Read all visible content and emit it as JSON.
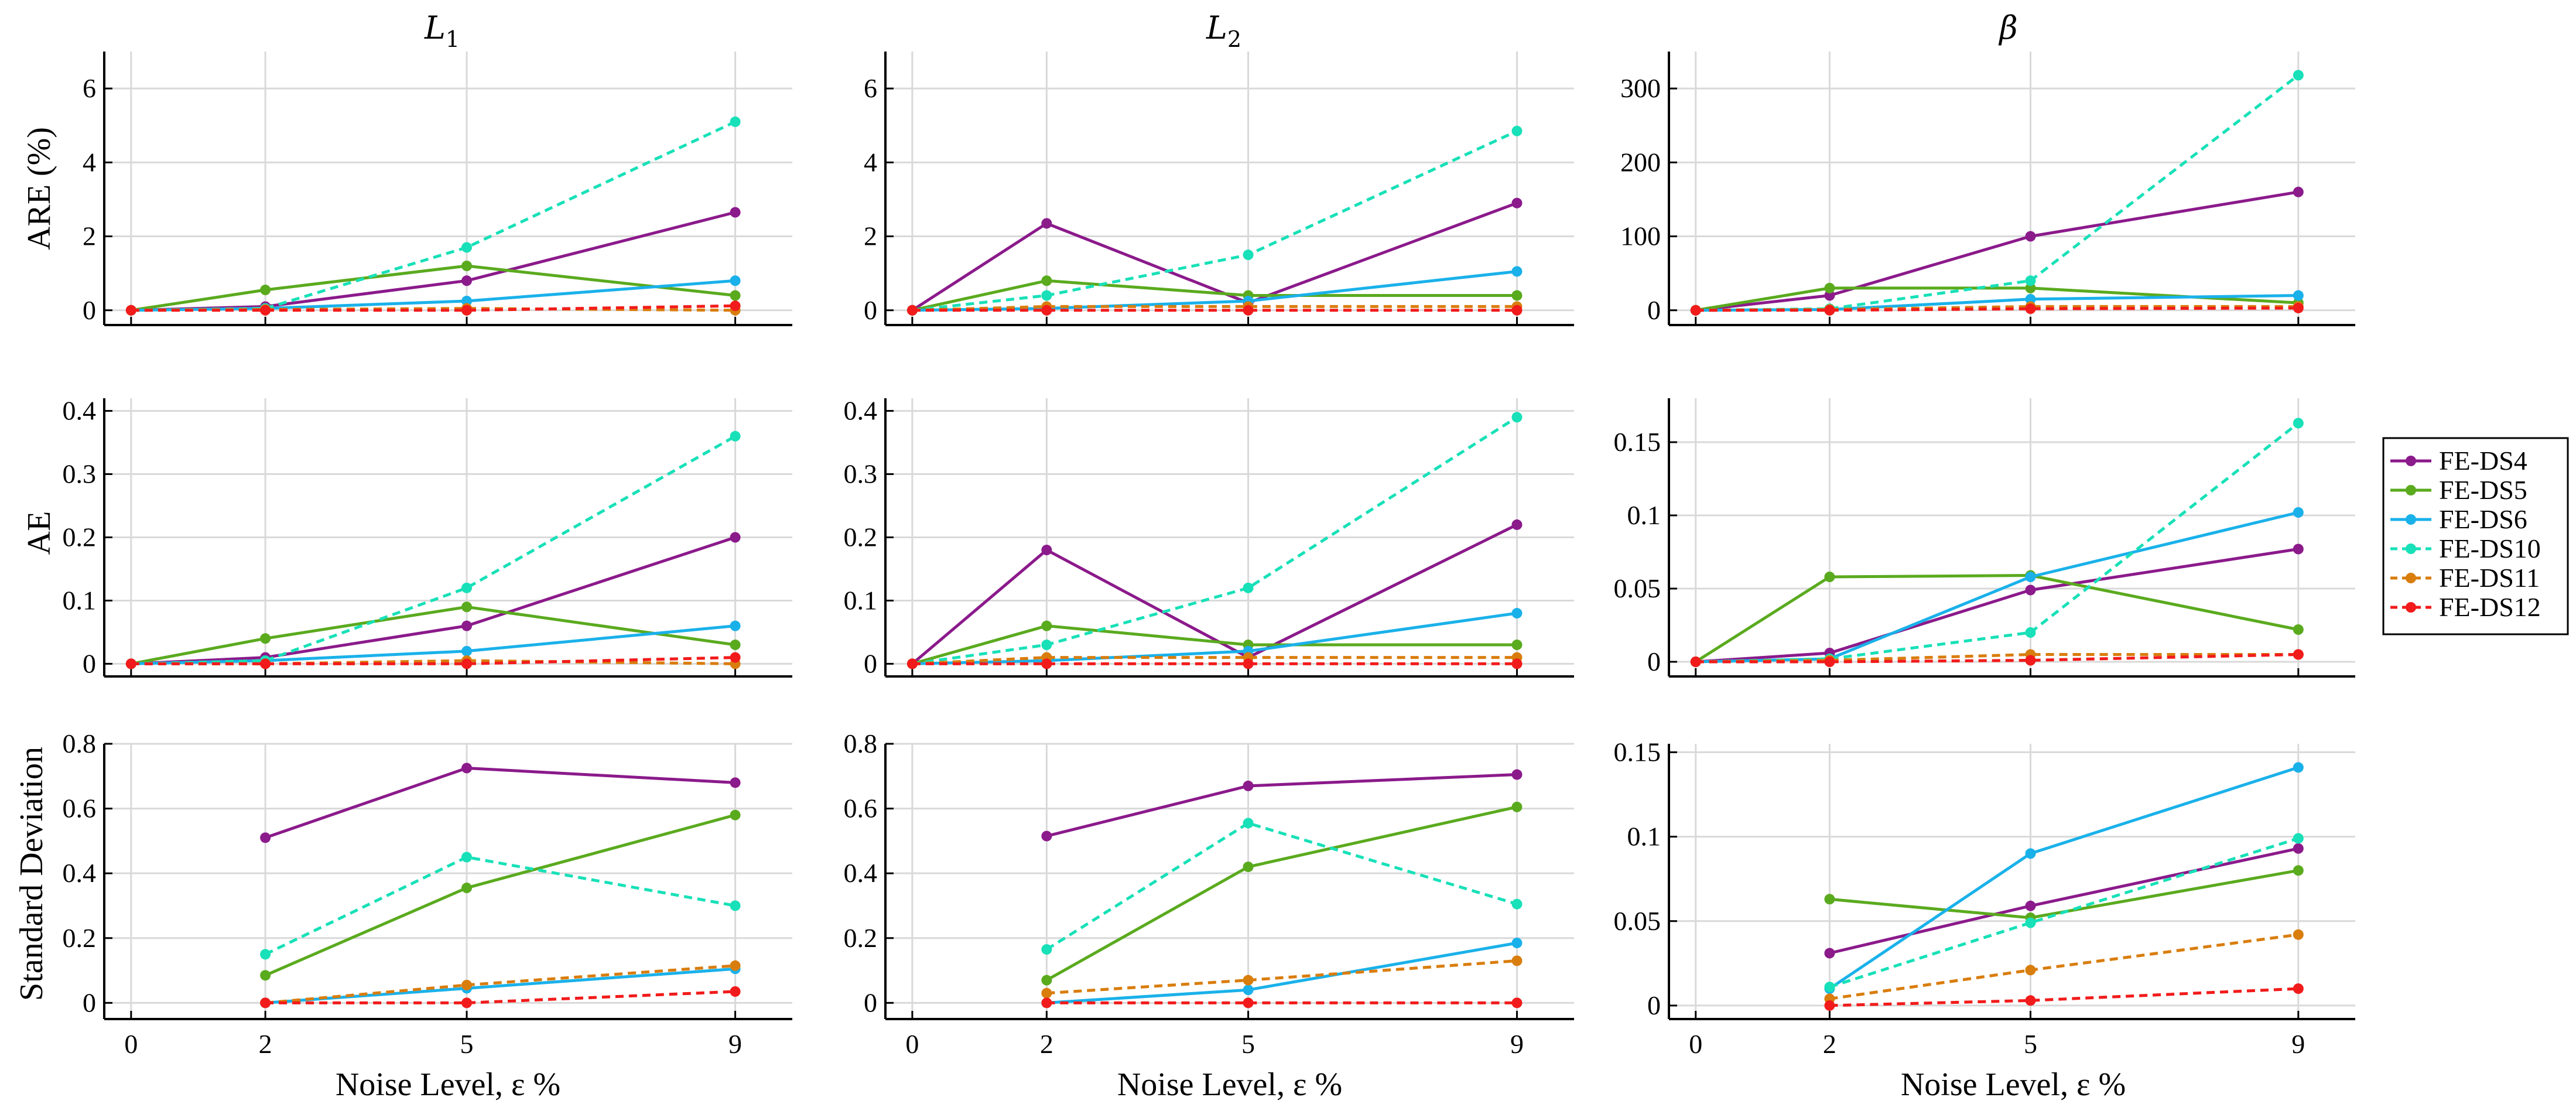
{
  "chart_data": {
    "type": "line",
    "xlabel": "Noise Level, ε %",
    "x_ticks": [
      0,
      2,
      5,
      9
    ],
    "series_styles": [
      {
        "name": "FE-DS4",
        "color": "#8b1a8b",
        "dash": "solid"
      },
      {
        "name": "FE-DS5",
        "color": "#5aaa1e",
        "dash": "solid"
      },
      {
        "name": "FE-DS6",
        "color": "#1ab1ea",
        "dash": "solid"
      },
      {
        "name": "FE-DS10",
        "color": "#18e0b8",
        "dash": "dashed"
      },
      {
        "name": "FE-DS11",
        "color": "#d97d0d",
        "dash": "dashed"
      },
      {
        "name": "FE-DS12",
        "color": "#f21b1b",
        "dash": "dashed"
      }
    ],
    "columns": [
      "L1",
      "L2",
      "β"
    ],
    "row_ylabels": [
      "ARE (%)",
      "AE",
      "Standard Deviation"
    ],
    "panels": [
      {
        "row": 0,
        "col": 0,
        "ylim": [
          -0.4,
          7
        ],
        "yticks": [
          0,
          2,
          4,
          6
        ],
        "ytick_labels": [
          "0",
          "2",
          "4",
          "6"
        ],
        "series": [
          {
            "x": [
              0,
              2,
              5,
              9
            ],
            "y": [
              0,
              0.1,
              0.8,
              2.65
            ]
          },
          {
            "x": [
              0,
              2,
              5,
              9
            ],
            "y": [
              0,
              0.55,
              1.2,
              0.4
            ]
          },
          {
            "x": [
              0,
              2,
              5,
              9
            ],
            "y": [
              0,
              0.05,
              0.25,
              0.8
            ]
          },
          {
            "x": [
              0,
              2,
              5,
              9
            ],
            "y": [
              0,
              0.05,
              1.7,
              5.1
            ]
          },
          {
            "x": [
              0,
              2,
              5,
              9
            ],
            "y": [
              0,
              0.02,
              0.05,
              0.0
            ]
          },
          {
            "x": [
              0,
              2,
              5,
              9
            ],
            "y": [
              0,
              0.0,
              0.0,
              0.12
            ]
          }
        ]
      },
      {
        "row": 0,
        "col": 1,
        "ylim": [
          -0.4,
          7
        ],
        "yticks": [
          0,
          2,
          4,
          6
        ],
        "ytick_labels": [
          "0",
          "2",
          "4",
          "6"
        ],
        "series": [
          {
            "x": [
              0,
              2,
              5,
              9
            ],
            "y": [
              0,
              2.35,
              0.2,
              2.9
            ]
          },
          {
            "x": [
              0,
              2,
              5,
              9
            ],
            "y": [
              0,
              0.8,
              0.4,
              0.4
            ]
          },
          {
            "x": [
              0,
              2,
              5,
              9
            ],
            "y": [
              0,
              0.05,
              0.25,
              1.05
            ]
          },
          {
            "x": [
              0,
              2,
              5,
              9
            ],
            "y": [
              0,
              0.4,
              1.5,
              4.85
            ]
          },
          {
            "x": [
              0,
              2,
              5,
              9
            ],
            "y": [
              0,
              0.1,
              0.1,
              0.1
            ]
          },
          {
            "x": [
              0,
              2,
              5,
              9
            ],
            "y": [
              0,
              0.0,
              0.0,
              0.0
            ]
          }
        ]
      },
      {
        "row": 0,
        "col": 2,
        "ylim": [
          -20,
          350
        ],
        "yticks": [
          0,
          100,
          200,
          300
        ],
        "ytick_labels": [
          "0",
          "100",
          "200",
          "300"
        ],
        "series": [
          {
            "x": [
              0,
              2,
              5,
              9
            ],
            "y": [
              0,
              20,
              100,
              160
            ]
          },
          {
            "x": [
              0,
              2,
              5,
              9
            ],
            "y": [
              0,
              30,
              30,
              10
            ]
          },
          {
            "x": [
              0,
              2,
              5,
              9
            ],
            "y": [
              0,
              1,
              15,
              20
            ]
          },
          {
            "x": [
              0,
              2,
              5,
              9
            ],
            "y": [
              0,
              2,
              40,
              318
            ]
          },
          {
            "x": [
              0,
              2,
              5,
              9
            ],
            "y": [
              0,
              1,
              5,
              5
            ]
          },
          {
            "x": [
              0,
              2,
              5,
              9
            ],
            "y": [
              0,
              0,
              2,
              3
            ]
          }
        ]
      },
      {
        "row": 1,
        "col": 0,
        "ylim": [
          -0.02,
          0.42
        ],
        "yticks": [
          0,
          0.1,
          0.2,
          0.3,
          0.4
        ],
        "ytick_labels": [
          "0",
          "0.1",
          "0.2",
          "0.3",
          "0.4"
        ],
        "series": [
          {
            "x": [
              0,
              2,
              5,
              9
            ],
            "y": [
              0,
              0.01,
              0.06,
              0.2
            ]
          },
          {
            "x": [
              0,
              2,
              5,
              9
            ],
            "y": [
              0,
              0.04,
              0.09,
              0.03
            ]
          },
          {
            "x": [
              0,
              2,
              5,
              9
            ],
            "y": [
              0,
              0.005,
              0.02,
              0.06
            ]
          },
          {
            "x": [
              0,
              2,
              5,
              9
            ],
            "y": [
              0,
              0.005,
              0.12,
              0.36
            ]
          },
          {
            "x": [
              0,
              2,
              5,
              9
            ],
            "y": [
              0,
              0.0,
              0.005,
              0.0
            ]
          },
          {
            "x": [
              0,
              2,
              5,
              9
            ],
            "y": [
              0,
              0.0,
              0.0,
              0.01
            ]
          }
        ]
      },
      {
        "row": 1,
        "col": 1,
        "ylim": [
          -0.02,
          0.42
        ],
        "yticks": [
          0,
          0.1,
          0.2,
          0.3,
          0.4
        ],
        "ytick_labels": [
          "0",
          "0.1",
          "0.2",
          "0.3",
          "0.4"
        ],
        "series": [
          {
            "x": [
              0,
              2,
              5,
              9
            ],
            "y": [
              0,
              0.18,
              0.01,
              0.22
            ]
          },
          {
            "x": [
              0,
              2,
              5,
              9
            ],
            "y": [
              0,
              0.06,
              0.03,
              0.03
            ]
          },
          {
            "x": [
              0,
              2,
              5,
              9
            ],
            "y": [
              0,
              0.005,
              0.02,
              0.08
            ]
          },
          {
            "x": [
              0,
              2,
              5,
              9
            ],
            "y": [
              0,
              0.03,
              0.12,
              0.39
            ]
          },
          {
            "x": [
              0,
              2,
              5,
              9
            ],
            "y": [
              0,
              0.01,
              0.01,
              0.01
            ]
          },
          {
            "x": [
              0,
              2,
              5,
              9
            ],
            "y": [
              0,
              0.0,
              0.0,
              0.0
            ]
          }
        ]
      },
      {
        "row": 1,
        "col": 2,
        "ylim": [
          -0.01,
          0.18
        ],
        "yticks": [
          0,
          0.05,
          0.1,
          0.15
        ],
        "ytick_labels": [
          "0",
          "0.05",
          "0.1",
          "0.15"
        ],
        "series": [
          {
            "x": [
              0,
              2,
              5,
              9
            ],
            "y": [
              0,
              0.006,
              0.049,
              0.077
            ]
          },
          {
            "x": [
              0,
              2,
              5,
              9
            ],
            "y": [
              0,
              0.058,
              0.059,
              0.022
            ]
          },
          {
            "x": [
              0,
              2,
              5,
              9
            ],
            "y": [
              0,
              0.002,
              0.058,
              0.102
            ]
          },
          {
            "x": [
              0,
              2,
              5,
              9
            ],
            "y": [
              0,
              0.002,
              0.02,
              0.163
            ]
          },
          {
            "x": [
              0,
              2,
              5,
              9
            ],
            "y": [
              0,
              0.001,
              0.005,
              0.005
            ]
          },
          {
            "x": [
              0,
              2,
              5,
              9
            ],
            "y": [
              0,
              0.0,
              0.001,
              0.005
            ]
          }
        ]
      },
      {
        "row": 2,
        "col": 0,
        "ylim": [
          -0.05,
          0.8
        ],
        "yticks": [
          0,
          0.2,
          0.4,
          0.6,
          0.8
        ],
        "ytick_labels": [
          "0",
          "0.2",
          "0.4",
          "0.6",
          "0.8"
        ],
        "series": [
          {
            "x": [
              2,
              5,
              9
            ],
            "y": [
              0.51,
              0.725,
              0.68
            ]
          },
          {
            "x": [
              2,
              5,
              9
            ],
            "y": [
              0.085,
              0.355,
              0.58
            ]
          },
          {
            "x": [
              2,
              5,
              9
            ],
            "y": [
              0.0,
              0.045,
              0.105
            ]
          },
          {
            "x": [
              2,
              5,
              9
            ],
            "y": [
              0.15,
              0.45,
              0.3
            ]
          },
          {
            "x": [
              2,
              5,
              9
            ],
            "y": [
              0.0,
              0.055,
              0.115
            ]
          },
          {
            "x": [
              2,
              5,
              9
            ],
            "y": [
              0.0,
              0.0,
              0.035
            ]
          }
        ]
      },
      {
        "row": 2,
        "col": 1,
        "ylim": [
          -0.05,
          0.8
        ],
        "yticks": [
          0,
          0.2,
          0.4,
          0.6,
          0.8
        ],
        "ytick_labels": [
          "0",
          "0.2",
          "0.4",
          "0.6",
          "0.8"
        ],
        "series": [
          {
            "x": [
              2,
              5,
              9
            ],
            "y": [
              0.515,
              0.67,
              0.705
            ]
          },
          {
            "x": [
              2,
              5,
              9
            ],
            "y": [
              0.07,
              0.42,
              0.605
            ]
          },
          {
            "x": [
              2,
              5,
              9
            ],
            "y": [
              0.0,
              0.04,
              0.185
            ]
          },
          {
            "x": [
              2,
              5,
              9
            ],
            "y": [
              0.165,
              0.555,
              0.305
            ]
          },
          {
            "x": [
              2,
              5,
              9
            ],
            "y": [
              0.03,
              0.07,
              0.13
            ]
          },
          {
            "x": [
              2,
              5,
              9
            ],
            "y": [
              0.0,
              0.0,
              0.0
            ]
          }
        ]
      },
      {
        "row": 2,
        "col": 2,
        "ylim": [
          -0.008,
          0.155
        ],
        "yticks": [
          0,
          0.05,
          0.1,
          0.15
        ],
        "ytick_labels": [
          "0",
          "0.05",
          "0.1",
          "0.15"
        ],
        "series": [
          {
            "x": [
              2,
              5,
              9
            ],
            "y": [
              0.031,
              0.059,
              0.093
            ]
          },
          {
            "x": [
              2,
              5,
              9
            ],
            "y": [
              0.063,
              0.052,
              0.08
            ]
          },
          {
            "x": [
              2,
              5,
              9
            ],
            "y": [
              0.01,
              0.09,
              0.141
            ]
          },
          {
            "x": [
              2,
              5,
              9
            ],
            "y": [
              0.011,
              0.049,
              0.099
            ]
          },
          {
            "x": [
              2,
              5,
              9
            ],
            "y": [
              0.004,
              0.021,
              0.042
            ]
          },
          {
            "x": [
              2,
              5,
              9
            ],
            "y": [
              0.0,
              0.003,
              0.01
            ]
          }
        ]
      }
    ]
  }
}
